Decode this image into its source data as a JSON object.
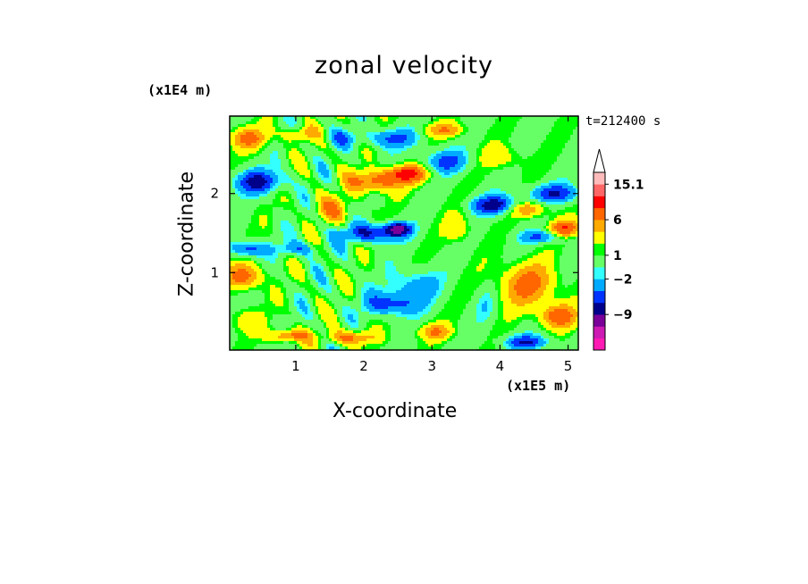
{
  "chart_data": {
    "type": "heatmap",
    "title": "zonal velocity",
    "xlabel": "X-coordinate",
    "ylabel": "Z-coordinate",
    "x_unit_label": "(x1E5 m)",
    "y_unit_label": "(x1E4 m)",
    "time_label": "t=212400 s",
    "xlim": [
      0.03,
      5.15
    ],
    "ylim": [
      0.02,
      2.98
    ],
    "x_ticks": [
      1,
      2,
      3,
      4,
      5
    ],
    "y_ticks": [
      1,
      2
    ],
    "colorbar": {
      "levels": [
        -15.1,
        -12,
        -9,
        -6,
        -4,
        -2,
        -1,
        1,
        2,
        4,
        6,
        9,
        12,
        15.1
      ],
      "labels": [
        "15.1",
        "6",
        "1",
        "−2",
        "−9"
      ],
      "label_values": [
        15.1,
        6,
        1,
        -2,
        -9
      ],
      "colors": [
        "#ff1ab3",
        "#cc1ab3",
        "#7a0099",
        "#00008b",
        "#0033ff",
        "#00aaff",
        "#33ffff",
        "#66ff66",
        "#00ff00",
        "#ffff00",
        "#ffaa00",
        "#ff6600",
        "#ff0000",
        "#ff6666",
        "#ffbbbb"
      ],
      "extend_top": true
    },
    "features": [
      {
        "x": 0.45,
        "z": 2.15,
        "v": -7,
        "sx": 0.38,
        "sz": 0.15
      },
      {
        "x": 0.3,
        "z": 2.7,
        "v": 6,
        "sx": 0.3,
        "sz": 0.13
      },
      {
        "x": 1.05,
        "z": 2.75,
        "v": 4,
        "sx": 0.25,
        "sz": 0.1
      },
      {
        "x": 1.65,
        "z": 2.7,
        "v": -3,
        "sx": 0.25,
        "sz": 0.1
      },
      {
        "x": 2.4,
        "z": 2.7,
        "v": -5,
        "sx": 0.4,
        "sz": 0.12
      },
      {
        "x": 3.2,
        "z": 2.4,
        "v": -5,
        "sx": 0.35,
        "sz": 0.15
      },
      {
        "x": 3.2,
        "z": 2.8,
        "v": 5,
        "sx": 0.3,
        "sz": 0.09
      },
      {
        "x": 2.15,
        "z": 2.15,
        "v": 7,
        "sx": 0.38,
        "sz": 0.14
      },
      {
        "x": 2.65,
        "z": 2.25,
        "v": 9,
        "sx": 0.3,
        "sz": 0.11
      },
      {
        "x": 2.1,
        "z": 1.5,
        "v": -7,
        "sx": 0.45,
        "sz": 0.12
      },
      {
        "x": 2.5,
        "z": 1.55,
        "v": -9,
        "sx": 0.18,
        "sz": 0.08
      },
      {
        "x": 1.55,
        "z": 1.8,
        "v": 4,
        "sx": 0.3,
        "sz": 0.18
      },
      {
        "x": 1.05,
        "z": 1.3,
        "v": -4,
        "sx": 0.3,
        "sz": 0.09
      },
      {
        "x": 0.3,
        "z": 1.3,
        "v": -6,
        "sx": 0.28,
        "sz": 0.1
      },
      {
        "x": 0.25,
        "z": 0.95,
        "v": 7,
        "sx": 0.26,
        "sz": 0.16
      },
      {
        "x": 0.25,
        "z": 0.4,
        "v": 3,
        "sx": 0.25,
        "sz": 0.15
      },
      {
        "x": 0.9,
        "z": 0.2,
        "v": 7,
        "sx": 0.28,
        "sz": 0.08
      },
      {
        "x": 1.8,
        "z": 0.18,
        "v": 6,
        "sx": 0.35,
        "sz": 0.09
      },
      {
        "x": 2.4,
        "z": 0.6,
        "v": -6,
        "sx": 0.4,
        "sz": 0.15
      },
      {
        "x": 2.75,
        "z": 0.85,
        "v": -4,
        "sx": 0.35,
        "sz": 0.2
      },
      {
        "x": 3.05,
        "z": 0.25,
        "v": 5,
        "sx": 0.25,
        "sz": 0.1
      },
      {
        "x": 3.4,
        "z": 1.55,
        "v": 3,
        "sx": 0.2,
        "sz": 0.2
      },
      {
        "x": 4.05,
        "z": 2.45,
        "v": 3,
        "sx": 0.3,
        "sz": 0.15
      },
      {
        "x": 3.95,
        "z": 1.85,
        "v": -8,
        "sx": 0.35,
        "sz": 0.12
      },
      {
        "x": 4.8,
        "z": 2.0,
        "v": -6,
        "sx": 0.4,
        "sz": 0.12
      },
      {
        "x": 4.4,
        "z": 1.8,
        "v": 6,
        "sx": 0.3,
        "sz": 0.1
      },
      {
        "x": 4.95,
        "z": 1.55,
        "v": 8,
        "sx": 0.22,
        "sz": 0.11
      },
      {
        "x": 4.65,
        "z": 1.45,
        "v": -5,
        "sx": 0.35,
        "sz": 0.08
      },
      {
        "x": 4.4,
        "z": 0.85,
        "v": 6,
        "sx": 0.45,
        "sz": 0.28
      },
      {
        "x": 4.85,
        "z": 0.45,
        "v": 7,
        "sx": 0.28,
        "sz": 0.15
      },
      {
        "x": 4.4,
        "z": 0.12,
        "v": -6,
        "sx": 0.35,
        "sz": 0.09
      },
      {
        "x": 3.8,
        "z": 0.6,
        "v": -2,
        "sx": 0.15,
        "sz": 0.25
      }
    ]
  }
}
